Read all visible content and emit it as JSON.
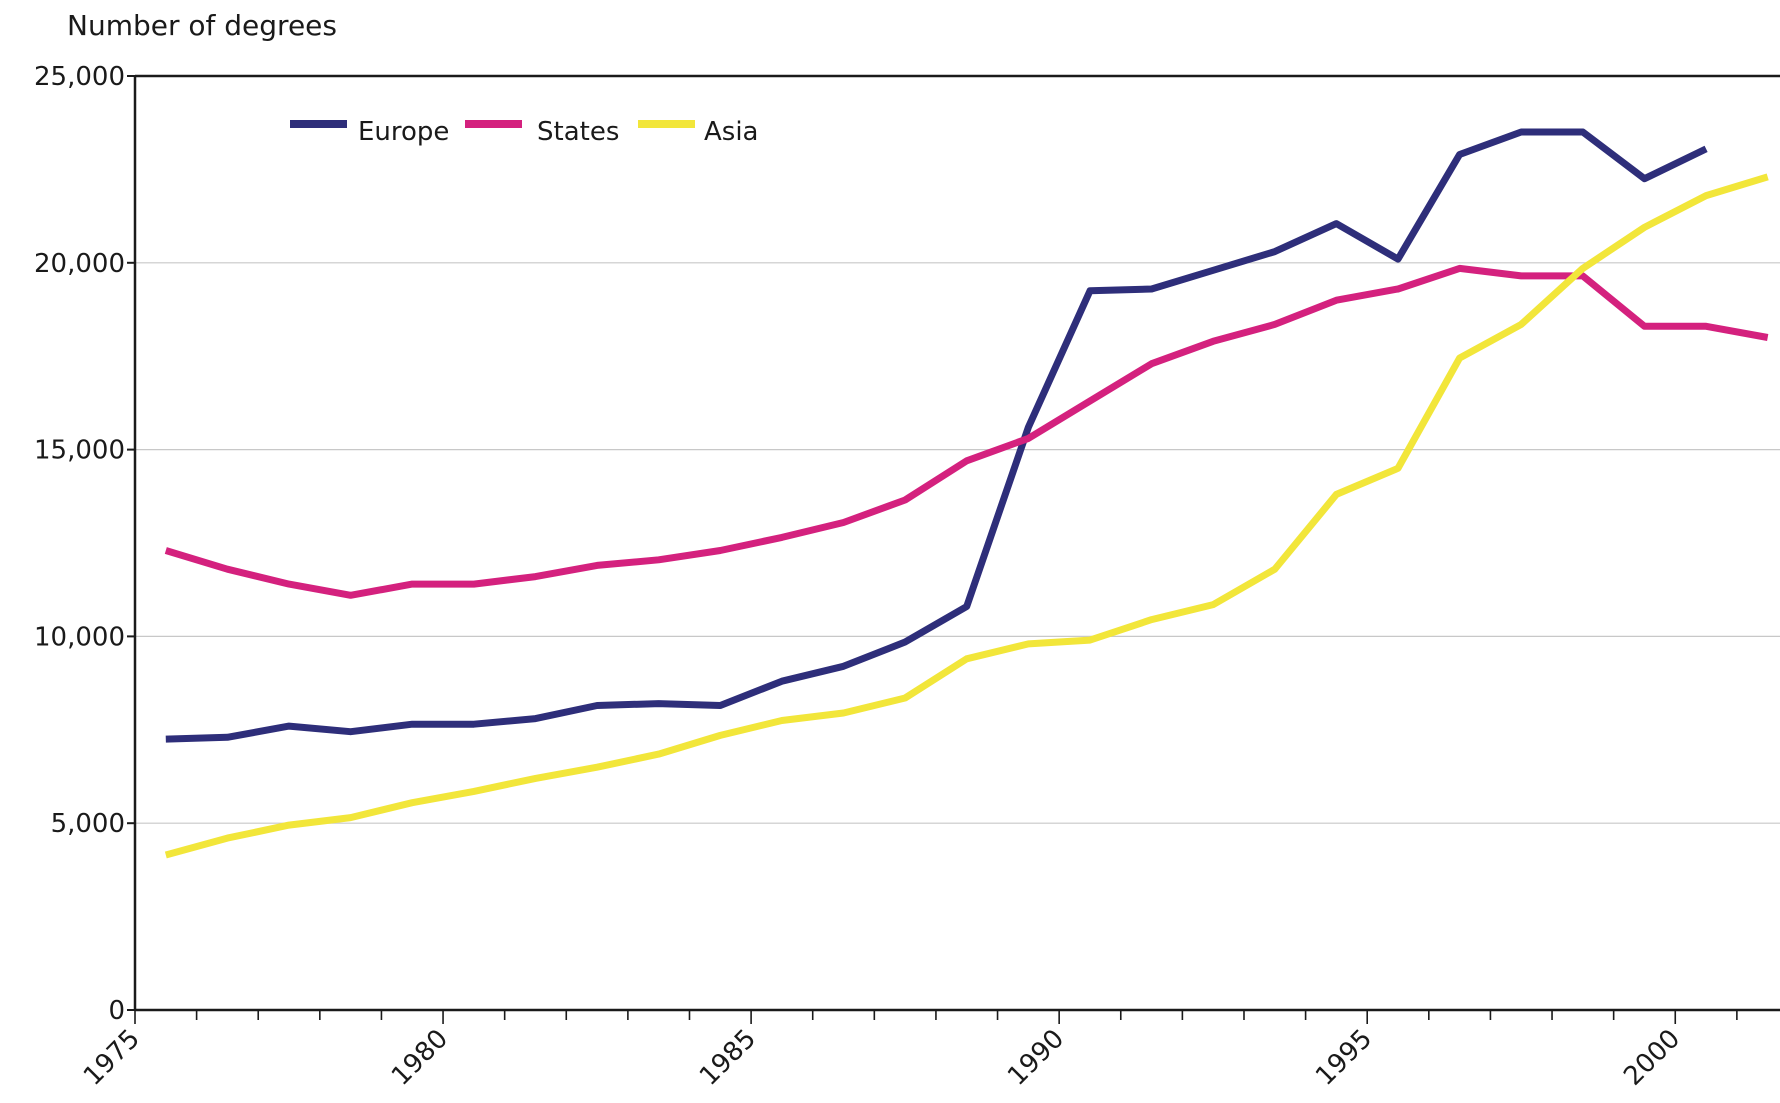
{
  "chart_data": {
    "type": "line",
    "title": "",
    "ylabel": "Number of degrees",
    "xlabel": "",
    "xlim": [
      1975,
      2001.7
    ],
    "ylim": [
      0,
      25000
    ],
    "x_ticks": [
      1975,
      1980,
      1985,
      1990,
      1995,
      2000
    ],
    "x_tick_labels": [
      "1975",
      "1980",
      "1985",
      "1990",
      "1995",
      "2000"
    ],
    "y_ticks": [
      0,
      5000,
      10000,
      15000,
      20000,
      25000
    ],
    "y_tick_labels": [
      "0",
      "5,000",
      "10,000",
      "15,000",
      "20,000",
      "25,000"
    ],
    "grid": "horizontal",
    "legend": "top-left",
    "series": [
      {
        "name": "Europe",
        "color": "#2e2e7a",
        "x": [
          1975.5,
          1976.5,
          1977.5,
          1978.5,
          1979.5,
          1980.5,
          1981.5,
          1982.5,
          1983.5,
          1984.5,
          1985.5,
          1986.5,
          1987.5,
          1988.5,
          1989.5,
          1990.5,
          1991.5,
          1992.5,
          1993.5,
          1994.5,
          1995.5,
          1996.5,
          1997.5,
          1998.5,
          1999.5,
          2000.5
        ],
        "values": [
          7250,
          7300,
          7600,
          7450,
          7650,
          7650,
          7800,
          8150,
          8200,
          8150,
          8800,
          9200,
          9850,
          10800,
          15600,
          19250,
          19300,
          19800,
          20300,
          21050,
          20100,
          22900,
          23500,
          23500,
          22250,
          23050
        ]
      },
      {
        "name": "States",
        "color": "#d4217e",
        "x": [
          1975.5,
          1976.5,
          1977.5,
          1978.5,
          1979.5,
          1980.5,
          1981.5,
          1982.5,
          1983.5,
          1984.5,
          1985.5,
          1986.5,
          1987.5,
          1988.5,
          1989.5,
          1990.5,
          1991.5,
          1992.5,
          1993.5,
          1994.5,
          1995.5,
          1996.5,
          1997.5,
          1998.5,
          1999.5,
          2000.5,
          2001.5
        ],
        "values": [
          12300,
          11800,
          11400,
          11100,
          11400,
          11400,
          11600,
          11900,
          12050,
          12300,
          12650,
          13050,
          13650,
          14700,
          15300,
          16300,
          17300,
          17900,
          18350,
          19000,
          19300,
          19850,
          19650,
          19650,
          18300,
          18300,
          18000
        ]
      },
      {
        "name": "Asia",
        "color": "#f2e63a",
        "x": [
          1975.5,
          1976.5,
          1977.5,
          1978.5,
          1979.5,
          1980.5,
          1981.5,
          1982.5,
          1983.5,
          1984.5,
          1985.5,
          1986.5,
          1987.5,
          1988.5,
          1989.5,
          1990.5,
          1991.5,
          1992.5,
          1993.5,
          1994.5,
          1995.5,
          1996.5,
          1997.5,
          1998.5,
          1999.5,
          2000.5,
          2001.5
        ],
        "values": [
          4150,
          4600,
          4950,
          5150,
          5550,
          5850,
          6200,
          6500,
          6850,
          7350,
          7750,
          7950,
          8350,
          9400,
          9800,
          9900,
          10450,
          10850,
          11800,
          13800,
          14500,
          17450,
          18350,
          19850,
          20950,
          21800,
          22300
        ]
      }
    ]
  }
}
